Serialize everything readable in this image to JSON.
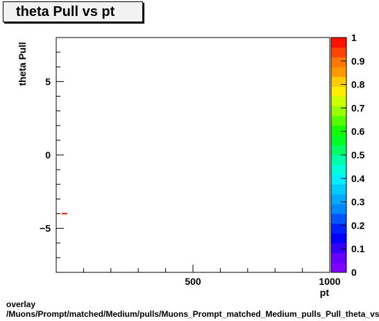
{
  "chart_data": {
    "type": "scatter",
    "title": "theta Pull vs pt",
    "xlabel": "pt",
    "ylabel": "theta Pull",
    "xlim": [
      0,
      1000
    ],
    "ylim": [
      -8,
      8
    ],
    "x_ticks": [
      {
        "value": 500,
        "label": "500"
      },
      {
        "value": 1000,
        "label": "1000"
      }
    ],
    "y_ticks": [
      {
        "value": 5,
        "label": "5"
      },
      {
        "value": 0,
        "label": "0"
      },
      {
        "value": -5,
        "label": "−5"
      }
    ],
    "points": [
      {
        "x": 30,
        "y": -4.0,
        "color": "#ff0000"
      }
    ],
    "colorbar": {
      "range": [
        0,
        1
      ],
      "tick_labels": [
        "0",
        "0.1",
        "0.2",
        "0.3",
        "0.4",
        "0.5",
        "0.6",
        "0.7",
        "0.8",
        "0.9",
        "1"
      ],
      "colors": [
        "#7f00ff",
        "#6600ff",
        "#3300ff",
        "#0000ff",
        "#0022ff",
        "#0055ff",
        "#0088ff",
        "#00aaff",
        "#00ccff",
        "#00eeff",
        "#00ffdd",
        "#00ffaa",
        "#00ff66",
        "#00ff22",
        "#11ff00",
        "#55ff00",
        "#99ff00",
        "#ccff00",
        "#ffee00",
        "#ffcc00",
        "#ff9900",
        "#ff7700",
        "#ff4400",
        "#ff1100"
      ]
    }
  },
  "footer": {
    "line1": "overlay",
    "line2": "/Muons/Prompt/matched/Medium/pulls/Muons_Prompt_matched_Medium_pulls_Pull_theta_vs_pt"
  }
}
